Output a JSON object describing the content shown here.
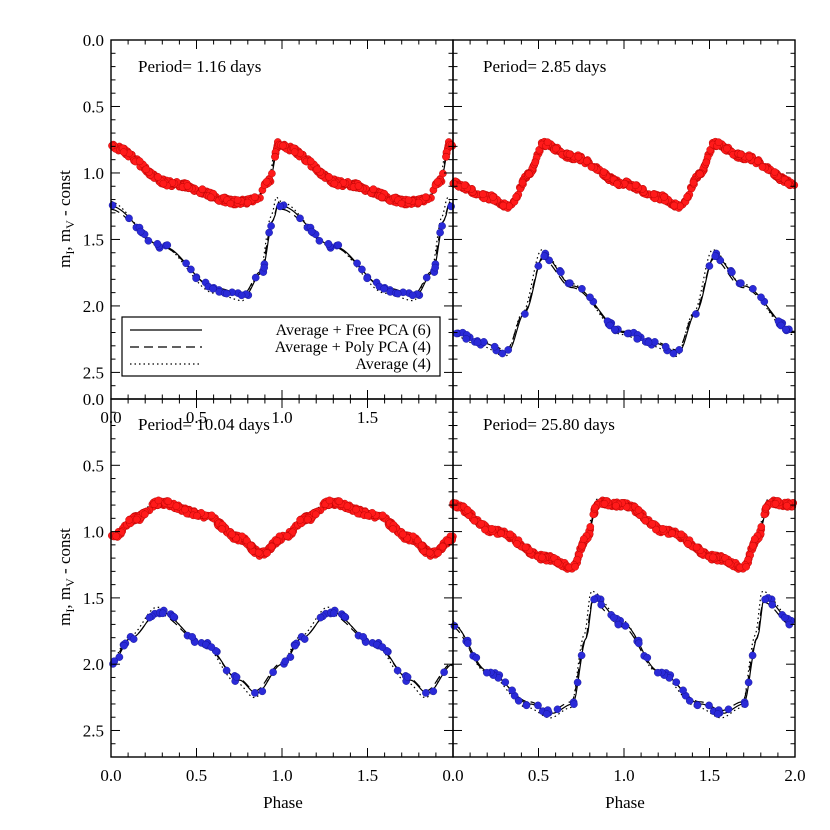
{
  "figure": {
    "xlabel": "Phase",
    "ylabel_main": "m",
    "ylabel_sub1": "I",
    "ylabel_mid": ", m",
    "ylabel_sub2": "V",
    "ylabel_tail": " - const"
  },
  "legend": {
    "placement": "lower-left of top-left panel",
    "entries": [
      {
        "label": "Average + Free PCA (6)",
        "style": "solid"
      },
      {
        "label": "Average + Poly PCA (4)",
        "style": "dashed"
      },
      {
        "label": "Average (4)",
        "style": "dotted"
      }
    ]
  },
  "colors": {
    "I_band": "#ff1a1a",
    "V_band": "#2a2ad8",
    "curves": "#000000"
  },
  "chart_data": [
    {
      "type": "scatter",
      "title": "Period= 1.16 days",
      "xlim": [
        0,
        2
      ],
      "ylim": [
        2.7,
        0.0
      ],
      "y_inverted": true,
      "xticks": [
        "0.0",
        "0.5",
        "1.0",
        "1.5"
      ],
      "yticks": [
        "0.0",
        "0.5",
        "1.0",
        "1.5",
        "2.0",
        "2.5"
      ],
      "series": [
        {
          "band": "I",
          "min_phase": 0.98,
          "max_mag": 0.78,
          "mag_at_phase0": 0.8,
          "pre_max_mag": 1.23,
          "pre_max_phase": 0.83
        },
        {
          "band": "V",
          "min_phase": 0.98,
          "max_mag": 1.22,
          "mag_at_phase0": 1.25,
          "pre_max_mag": 1.95,
          "pre_max_phase": 0.75
        }
      ]
    },
    {
      "type": "scatter",
      "title": "Period= 2.85 days",
      "xlim": [
        0,
        2
      ],
      "ylim": [
        2.7,
        0.0
      ],
      "y_inverted": true,
      "xticks": [],
      "yticks": [],
      "series": [
        {
          "band": "I",
          "max_phase": 0.53,
          "max_mag": 0.78,
          "mag_at_phase0": 1.08,
          "pre_max_mag": 1.25,
          "pre_max_phase": 0.33
        },
        {
          "band": "V",
          "max_phase": 0.53,
          "max_mag": 1.62,
          "mag_at_phase0": 2.2,
          "pre_max_mag": 2.35,
          "pre_max_phase": 0.3
        }
      ]
    },
    {
      "type": "scatter",
      "title": "Period= 10.04 days",
      "xlim": [
        0,
        2
      ],
      "ylim": [
        2.7,
        0.0
      ],
      "y_inverted": true,
      "xticks": [
        "0.0",
        "0.5",
        "1.0",
        "1.5"
      ],
      "yticks": [
        "0.0",
        "0.5",
        "1.0",
        "1.5",
        "2.0",
        "2.5"
      ],
      "series": [
        {
          "band": "I",
          "max_phase": 0.28,
          "max_mag": 0.78,
          "mag_at_phase0": 1.05,
          "min_mag": 1.17,
          "min_phase": 0.88
        },
        {
          "band": "V",
          "max_phase": 0.28,
          "max_mag": 1.6,
          "mag_at_phase0": 2.0,
          "min_mag": 2.22,
          "min_phase": 0.85
        }
      ]
    },
    {
      "type": "scatter",
      "title": "Period= 25.80 days",
      "xlim": [
        0,
        2
      ],
      "ylim": [
        2.7,
        0.0
      ],
      "y_inverted": true,
      "xticks": [
        "0.0",
        "0.5",
        "1.0",
        "1.5",
        "2.0"
      ],
      "yticks": [],
      "series": [
        {
          "band": "I",
          "max_phase": 0.85,
          "max_mag": 0.78,
          "mag_at_phase0": 0.8,
          "min_mag": 1.27,
          "min_phase": 0.7
        },
        {
          "band": "V",
          "max_phase": 0.82,
          "max_mag": 1.5,
          "mag_at_phase0": 1.7,
          "min_mag": 2.37,
          "min_phase": 0.58
        }
      ]
    }
  ]
}
